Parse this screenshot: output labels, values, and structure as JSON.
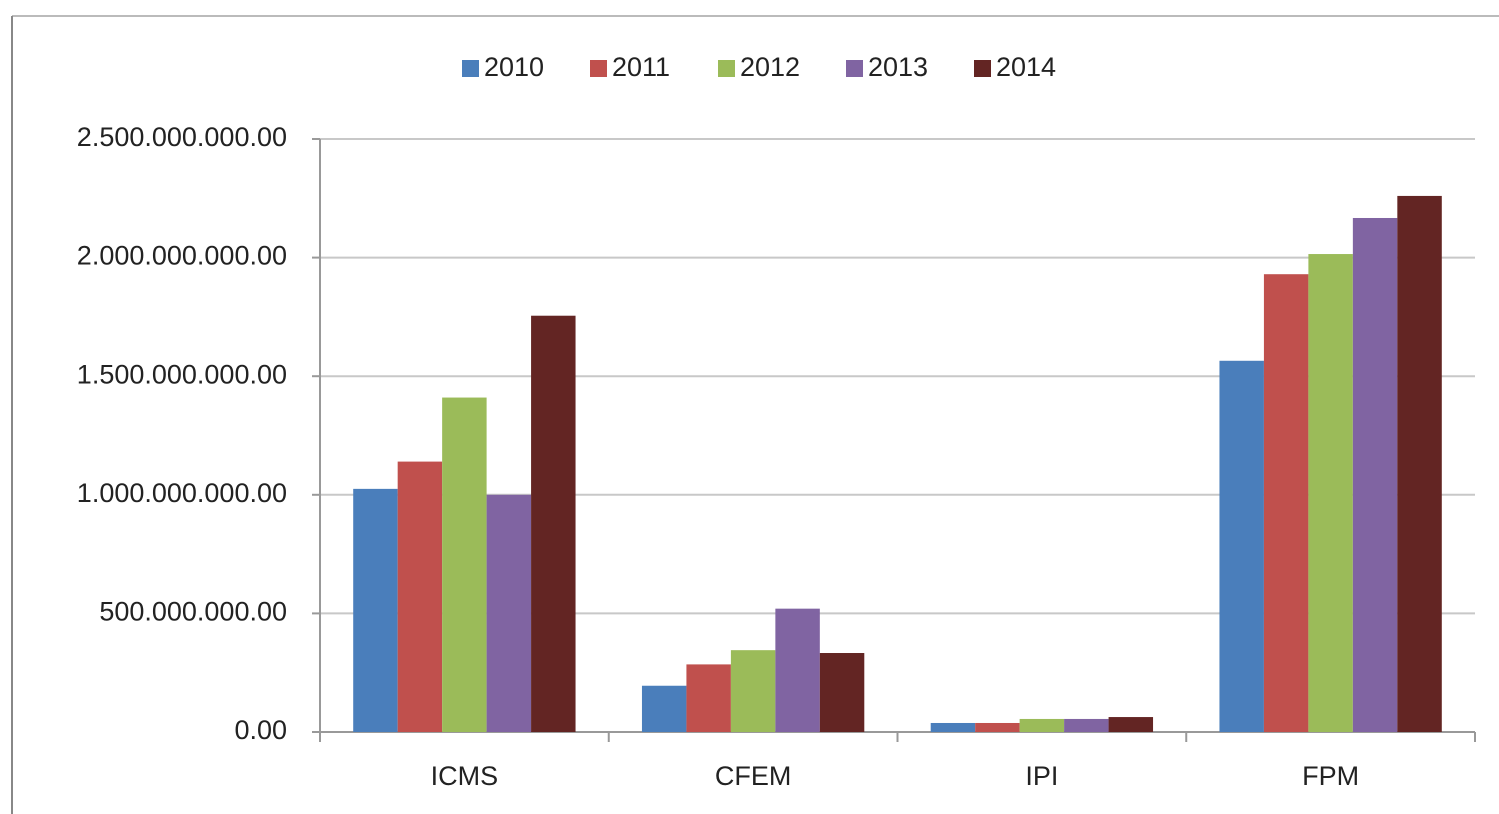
{
  "chart_data": {
    "type": "bar",
    "categories": [
      "ICMS",
      "CFEM",
      "IPI",
      "FPM"
    ],
    "series": [
      {
        "name": "2010",
        "color": "#4a7ebb",
        "values": [
          1025000000,
          195000000,
          38000000,
          1565000000
        ]
      },
      {
        "name": "2011",
        "color": "#c0504d",
        "values": [
          1140000000,
          285000000,
          38000000,
          1930000000
        ]
      },
      {
        "name": "2012",
        "color": "#9bbb59",
        "values": [
          1410000000,
          345000000,
          55000000,
          2015000000
        ]
      },
      {
        "name": "2013",
        "color": "#8064a2",
        "values": [
          1000000000,
          520000000,
          55000000,
          2167000000
        ]
      },
      {
        "name": "2014",
        "color": "#632523",
        "values": [
          1755000000,
          333000000,
          63000000,
          2260000000
        ]
      }
    ],
    "ylim": [
      0,
      2500000000
    ],
    "yticks": [
      {
        "value": 0,
        "label": "0.00"
      },
      {
        "value": 500000000,
        "label": "500.000.000.00"
      },
      {
        "value": 1000000000,
        "label": "1.000.000.000.00"
      },
      {
        "value": 1500000000,
        "label": "1.500.000.000.00"
      },
      {
        "value": 2000000000,
        "label": "2.000.000.000.00"
      },
      {
        "value": 2500000000,
        "label": "2.500.000.000.00"
      }
    ],
    "grid": true,
    "legend": "top"
  }
}
